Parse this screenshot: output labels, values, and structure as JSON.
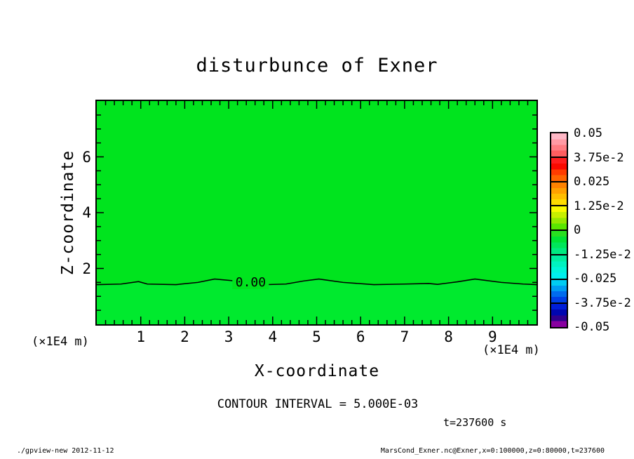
{
  "title": "disturbunce of Exner",
  "plot": {
    "contour_label": "0.00",
    "upper_fill": "#00e41e",
    "lower_fill": "#00ea2e",
    "frame_color": "#000000"
  },
  "x_axis": {
    "label": "X-coordinate",
    "unit": "(×1E4 m)"
  },
  "z_axis": {
    "label": "Z-coordinate",
    "unit": "(×1E4 m)"
  },
  "annotations": {
    "contour_interval": "CONTOUR INTERVAL = 5.000E-03",
    "time": "t=237600 s"
  },
  "footer": {
    "left": "./gpview-new  2012-11-12",
    "right": "MarsCond_Exner.nc@Exner,x=0:100000,z=0:80000,t=237600"
  },
  "colorbar": {
    "labels": [
      "0.05",
      "3.75e-2",
      "0.025",
      "1.25e-2",
      "0",
      "-1.25e-2",
      "-0.025",
      "-3.75e-2",
      "-0.05"
    ],
    "segment_colors": [
      [
        "#ffb8c6",
        "#ff9aa4",
        "#ff7c82",
        "#ff5e60"
      ],
      [
        "#ff1e1e",
        "#fa0a00",
        "#ff3c00",
        "#ff6400"
      ],
      [
        "#ff8200",
        "#ffa000",
        "#ffbe00",
        "#ffdc00"
      ],
      [
        "#fafa00",
        "#c8f000",
        "#96e800",
        "#5ae600"
      ],
      [
        "#28e020",
        "#00e234",
        "#00e65a",
        "#00ea80"
      ],
      [
        "#00eea0",
        "#00f2c0",
        "#00f4da",
        "#00f0ee"
      ],
      [
        "#00ccf2",
        "#009cf2",
        "#006cee",
        "#0040e6"
      ],
      [
        "#001ed8",
        "#0006b0",
        "#30008e",
        "#8800a0"
      ]
    ]
  },
  "chart_data": {
    "type": "heatmap",
    "title": "disturbunce of Exner",
    "xlabel": "X-coordinate",
    "ylabel": "Z-coordinate",
    "x_unit_scale": "(×1E4 m)",
    "y_unit_scale": "(×1E4 m)",
    "xlim": [
      0,
      10
    ],
    "ylim": [
      0,
      8
    ],
    "x_major_ticks": [
      1,
      2,
      3,
      4,
      5,
      6,
      7,
      8,
      9
    ],
    "x_minor_step": 0.2,
    "y_major_ticks": [
      2,
      4,
      6
    ],
    "y_minor_step": 0.5,
    "grid": false,
    "legend_position": "right-colorbar",
    "colorbar_tick_values": [
      0.05,
      0.0375,
      0.025,
      0.0125,
      0,
      -0.0125,
      -0.025,
      -0.0375,
      -0.05
    ],
    "colorbar_range": [
      -0.05,
      0.05
    ],
    "contour_interval": 0.005,
    "zero_contour": {
      "label": "0.00",
      "label_position_xz": [
        3.5,
        1.48
      ],
      "points_xz": [
        [
          0,
          1.42
        ],
        [
          0.55,
          1.44
        ],
        [
          0.95,
          1.53
        ],
        [
          1.15,
          1.44
        ],
        [
          1.8,
          1.42
        ],
        [
          2.3,
          1.5
        ],
        [
          2.68,
          1.62
        ],
        [
          3.1,
          1.56
        ],
        [
          3.5,
          1.48
        ],
        [
          3.85,
          1.42
        ],
        [
          4.3,
          1.44
        ],
        [
          4.7,
          1.55
        ],
        [
          5.05,
          1.62
        ],
        [
          5.6,
          1.5
        ],
        [
          6.3,
          1.42
        ],
        [
          7.0,
          1.44
        ],
        [
          7.55,
          1.46
        ],
        [
          7.75,
          1.43
        ],
        [
          8.2,
          1.52
        ],
        [
          8.6,
          1.62
        ],
        [
          9.2,
          1.5
        ],
        [
          9.7,
          1.44
        ],
        [
          10,
          1.42
        ]
      ]
    },
    "note": "Field is approximately 0 everywhere; only the 0.00 contour near z=1.5 is drawn."
  }
}
